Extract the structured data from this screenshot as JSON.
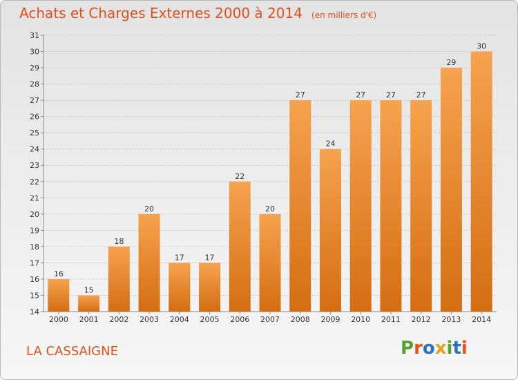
{
  "header": {
    "title": "Achats et Charges Externes 2000 à 2014",
    "unit": "(en milliers d'€)"
  },
  "commune": "LA CASSAIGNE",
  "logo": {
    "text": "Proxiti",
    "colors": [
      "#5aa031",
      "#e8501c",
      "#2a73c0",
      "#e8a21c",
      "#5aa031",
      "#2a73c0",
      "#e8501c"
    ]
  },
  "colors": {
    "title": "#e0501c",
    "bar_light": "#f6a24e",
    "bar_dark": "#d46d12",
    "grid": "#c8c8c8"
  },
  "chart_data": {
    "type": "bar",
    "title": "Achats et Charges Externes 2000 à 2014",
    "subtitle": "(en milliers d'€)",
    "xlabel": "",
    "ylabel": "",
    "categories": [
      "2000",
      "2001",
      "2002",
      "2003",
      "2004",
      "2005",
      "2006",
      "2007",
      "2008",
      "2009",
      "2010",
      "2011",
      "2012",
      "2013",
      "2014"
    ],
    "values": [
      16,
      15,
      18,
      20,
      17,
      17,
      22,
      20,
      27,
      24,
      27,
      27,
      27,
      29,
      30
    ],
    "ylim": [
      14,
      31
    ],
    "yticks": [
      14,
      15,
      16,
      17,
      18,
      19,
      20,
      21,
      22,
      23,
      24,
      25,
      26,
      27,
      28,
      29,
      30,
      31
    ],
    "grid": true,
    "legend": "none"
  }
}
